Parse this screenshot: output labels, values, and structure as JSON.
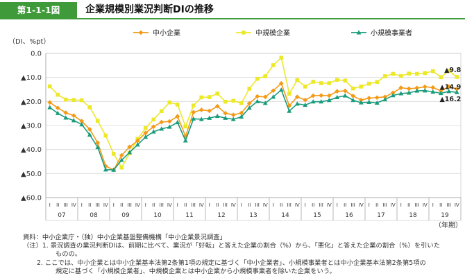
{
  "header": {
    "figure_no": "第1-1-1図",
    "title": "企業規模別業況判断DIの推移"
  },
  "colors": {
    "accent": "#3f9a3a",
    "sme": "#f39a16",
    "medium": "#ece82a",
    "small": "#1a9c7c"
  },
  "chart_data": {
    "type": "line",
    "ylabel": "（DI、%pt）",
    "xlabel": "（年期）",
    "ylim": [
      -60,
      0
    ],
    "yticks": [
      "0.0",
      "▲10.0",
      "▲20.0",
      "▲30.0",
      "▲40.0",
      "▲50.0",
      "▲60.0"
    ],
    "grid": "horizontal",
    "legend_position": "top",
    "quarters": [
      "I",
      "II",
      "III",
      "IV"
    ],
    "years": [
      "07",
      "08",
      "09",
      "10",
      "11",
      "12",
      "13",
      "14",
      "15",
      "16",
      "17",
      "18",
      "19"
    ],
    "first_period": "2007 I",
    "series": [
      {
        "name": "中小企業",
        "color": "#f39a16",
        "marker": "diamond",
        "values": [
          -20.4,
          -22.7,
          -24.7,
          -25.9,
          -28.2,
          -31.6,
          -37.2,
          -46.9,
          -48.5,
          -42.4,
          -38.9,
          -36.4,
          -33.1,
          -30.5,
          -28.6,
          -28.3,
          -26.2,
          -34.5,
          -24.5,
          -23.5,
          -23.9,
          -22.0,
          -24.9,
          -25.6,
          -24.8,
          -20.8,
          -17.9,
          -18.1,
          -15.5,
          -12.5,
          -21.8,
          -18.1,
          -19.4,
          -17.6,
          -17.5,
          -17.6,
          -15.8,
          -15.6,
          -17.7,
          -19.4,
          -18.6,
          -18.4,
          -18.1,
          -16.4,
          -14.3,
          -14.7,
          -14.4,
          -13.9,
          -14.2,
          -15.6,
          -13.8,
          -14.9
        ],
        "end_label": "▲14.9"
      },
      {
        "name": "中規模企業",
        "color": "#ece82a",
        "marker": "square",
        "values": [
          -13.7,
          -17.2,
          -19.2,
          -19.4,
          -19.5,
          -22.4,
          -28.1,
          -34.2,
          -41.8,
          -47.5,
          -41.5,
          -35.6,
          -31.1,
          -27.5,
          -24.0,
          -20.4,
          -21.3,
          -30.4,
          -21.7,
          -18.3,
          -18.2,
          -16.7,
          -20.1,
          -19.7,
          -20.7,
          -14.7,
          -10.6,
          -9.5,
          -4.9,
          -1.8,
          -16.8,
          -11.1,
          -13.8,
          -11.8,
          -12.4,
          -12.4,
          -11.0,
          -11.3,
          -14.6,
          -13.8,
          -12.6,
          -11.9,
          -9.5,
          -8.5,
          -9.4,
          -8.4,
          -8.5,
          -8.2,
          -7.4,
          -9.9,
          -7.3,
          -9.8
        ],
        "end_label": "▲9.8"
      },
      {
        "name": "小規模事業者",
        "color": "#1a9c7c",
        "marker": "triangle",
        "values": [
          -22.5,
          -24.9,
          -26.8,
          -27.9,
          -29.6,
          -33.9,
          -39.1,
          -48.4,
          -48.5,
          -44.4,
          -41.2,
          -38.0,
          -34.8,
          -32.6,
          -31.4,
          -30.6,
          -28.7,
          -36.3,
          -27.2,
          -27.4,
          -26.9,
          -26.1,
          -26.9,
          -27.4,
          -26.4,
          -22.7,
          -20.0,
          -20.7,
          -18.1,
          -15.2,
          -24.0,
          -21.0,
          -21.5,
          -20.1,
          -20.1,
          -19.5,
          -18.3,
          -17.6,
          -19.5,
          -20.5,
          -20.3,
          -20.6,
          -19.2,
          -17.5,
          -16.7,
          -16.4,
          -15.6,
          -15.5,
          -16.0,
          -16.6,
          -15.8,
          -16.2
        ],
        "end_label": "▲16.2"
      }
    ]
  },
  "notes": {
    "source": "資料：中小企業庁・（独）中小企業基盤整備機構「中小企業景況調査」",
    "note1_line1": "（注）1. 景況調査の業況判断DIは、前期に比べて、業況が「好転」と答えた企業の割合（%）から、「悪化」と答えた企業の割合（%）を引いた",
    "note1_line2": "ものの。",
    "note2_line1": "2. ここでは、中小企業とは中小企業基本法第2条第1項の規定に基づく「中小企業者」、小規模事業者とは中小企業基本法第2条第5項の",
    "note2_line2": "規定に基づく「小規模企業者」、中規模企業とは中小企業から小規模事業者を除いた企業をいう。"
  }
}
